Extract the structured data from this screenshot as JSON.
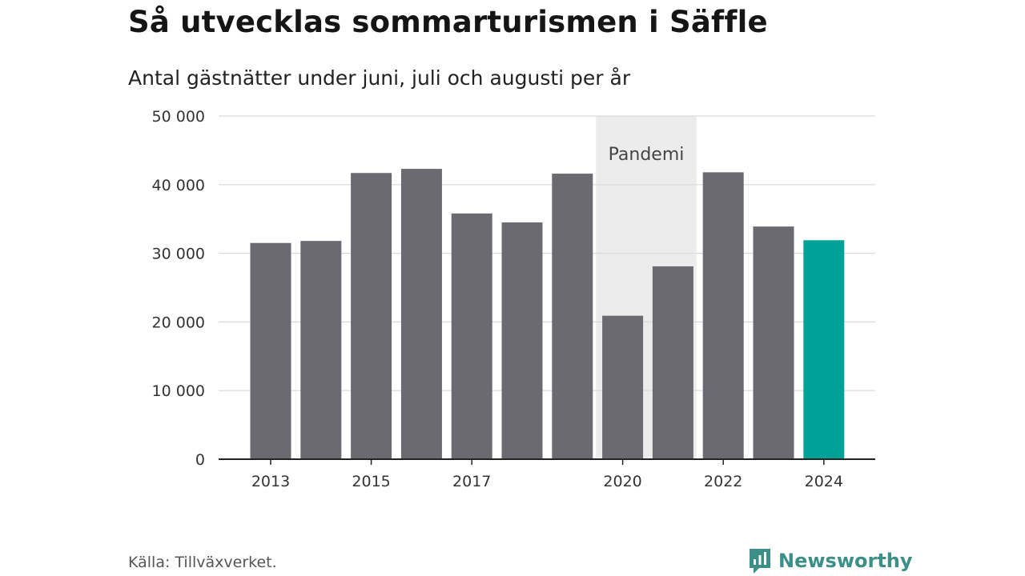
{
  "title": "Så utvecklas sommarturismen i Säffle",
  "subtitle": "Antal gästnätter under juni, juli och augusti per år",
  "source": "Källa: Tillväxverket.",
  "brand": {
    "name": "Newsworthy",
    "icon": "newsworthy-logo-icon"
  },
  "colors": {
    "bar": "#6b6a71",
    "highlight": "#00a298",
    "shade": "#ececec",
    "grid": "#d9d9d9",
    "axis": "#222222"
  },
  "chart_data": {
    "type": "bar",
    "title": "Så utvecklas sommarturismen i Säffle",
    "subtitle": "Antal gästnätter under juni, juli och augusti per år",
    "categories": [
      "2013",
      "2014",
      "2015",
      "2016",
      "2017",
      "2018",
      "2019",
      "2020",
      "2021",
      "2022",
      "2023",
      "2024"
    ],
    "values": [
      31500,
      31800,
      41700,
      42300,
      35800,
      34500,
      41600,
      20900,
      28100,
      41800,
      33900,
      31900
    ],
    "highlight_index": 11,
    "ylim": [
      0,
      50000
    ],
    "yticks": [
      0,
      10000,
      20000,
      30000,
      40000,
      50000
    ],
    "ytick_labels": [
      "0",
      "10 000",
      "20 000",
      "30 000",
      "40 000",
      "50 000"
    ],
    "xtick_labels": [
      "2013",
      "",
      "2015",
      "",
      "2017",
      "",
      "",
      "2020",
      "",
      "2022",
      "",
      "2024"
    ],
    "grid": true,
    "annotation": {
      "label": "Pandemi",
      "from": "2020",
      "to": "2021"
    },
    "xlabel": "",
    "ylabel": ""
  }
}
